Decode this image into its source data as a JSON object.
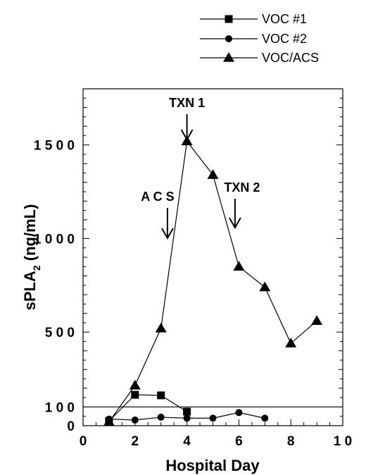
{
  "chart_data": {
    "type": "line",
    "xlabel": "Hospital  Day",
    "ylabel": {
      "main": "sPLA",
      "sub": "2",
      "units": "  (ng/mL)"
    },
    "xlim": [
      0,
      10
    ],
    "ylim": [
      0,
      1800
    ],
    "x_ticks": [
      0,
      2,
      4,
      6,
      8,
      10
    ],
    "x_tick_labels": [
      "0",
      "2",
      "4",
      "6",
      "8",
      "1 0"
    ],
    "y_tick_labels": [
      {
        "value": 0,
        "label": "0"
      },
      {
        "value": 100,
        "label": "1 0 0"
      },
      {
        "value": 500,
        "label": "5 0 0"
      },
      {
        "value": 1000,
        "label": "1 0 0 0"
      },
      {
        "value": 1500,
        "label": "1 5 0 0"
      }
    ],
    "reference_line": 100,
    "legend_position": "top-right",
    "series": [
      {
        "name": "VOC #1",
        "marker": "square",
        "x": [
          1,
          2,
          3,
          4
        ],
        "y": [
          25,
          165,
          162,
          75
        ]
      },
      {
        "name": "VOC #2",
        "marker": "circle",
        "x": [
          1,
          2,
          3,
          4,
          5,
          6,
          7
        ],
        "y": [
          35,
          30,
          45,
          40,
          40,
          70,
          40
        ]
      },
      {
        "name": "VOC/ACS",
        "marker": "triangle",
        "x": [
          1,
          2,
          3,
          4,
          5,
          6,
          7,
          8,
          9
        ],
        "y": [
          20,
          215,
          520,
          1520,
          1340,
          850,
          740,
          440,
          560
        ]
      }
    ],
    "annotations": [
      {
        "label": "TXN  1",
        "x": 4
      },
      {
        "label": "A C S",
        "x": 3.25
      },
      {
        "label": "TXN  2",
        "x": 5.85
      }
    ]
  }
}
